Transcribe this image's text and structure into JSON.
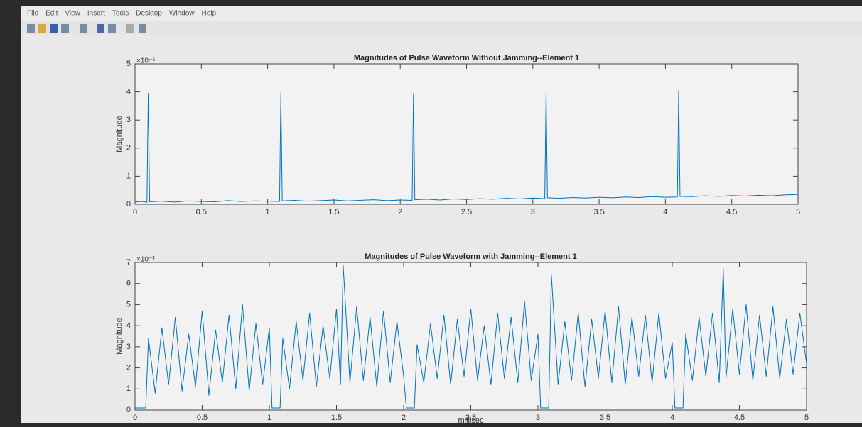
{
  "menu": [
    "File",
    "Edit",
    "View",
    "Insert",
    "Tools",
    "Desktop",
    "Window",
    "Help"
  ],
  "chart_data": [
    {
      "type": "line",
      "title": "Magnitudes of Pulse Waveform Without Jamming--Element 1",
      "ylabel": "Magnitude",
      "y_exponent": "×10⁻⁶",
      "x": [
        0,
        0.05,
        0.09,
        0.1,
        0.11,
        0.2,
        0.3,
        0.4,
        0.5,
        0.6,
        0.7,
        0.8,
        0.9,
        1.0,
        1.09,
        1.1,
        1.11,
        1.2,
        1.3,
        1.4,
        1.5,
        1.6,
        1.7,
        1.8,
        1.9,
        2.0,
        2.09,
        2.1,
        2.11,
        2.2,
        2.3,
        2.4,
        2.5,
        2.6,
        2.7,
        2.8,
        2.9,
        3.0,
        3.09,
        3.1,
        3.11,
        3.2,
        3.3,
        3.4,
        3.5,
        3.6,
        3.7,
        3.8,
        3.9,
        4.0,
        4.09,
        4.1,
        4.11,
        4.2,
        4.3,
        4.4,
        4.5,
        4.6,
        4.7,
        4.8,
        4.9,
        5.0
      ],
      "series": [
        {
          "color": "#0072bd",
          "values": [
            0.08,
            0.1,
            0.07,
            3.95,
            0.09,
            0.11,
            0.08,
            0.12,
            0.1,
            0.09,
            0.13,
            0.1,
            0.12,
            0.11,
            0.1,
            3.97,
            0.12,
            0.14,
            0.11,
            0.13,
            0.15,
            0.12,
            0.14,
            0.16,
            0.13,
            0.15,
            0.14,
            3.95,
            0.16,
            0.18,
            0.15,
            0.19,
            0.17,
            0.2,
            0.18,
            0.21,
            0.19,
            0.22,
            0.2,
            4.02,
            0.23,
            0.21,
            0.24,
            0.22,
            0.25,
            0.23,
            0.26,
            0.24,
            0.27,
            0.25,
            0.26,
            4.05,
            0.28,
            0.27,
            0.3,
            0.28,
            0.31,
            0.29,
            0.32,
            0.3,
            0.33,
            0.35
          ]
        }
      ],
      "xlim": [
        0,
        5
      ],
      "xticks": [
        0,
        0.5,
        1,
        1.5,
        2,
        2.5,
        3,
        3.5,
        4,
        4.5,
        5
      ],
      "ylim": [
        0,
        5
      ],
      "yticks": [
        0,
        1,
        2,
        3,
        4,
        5
      ]
    },
    {
      "type": "line",
      "title": "Magnitudes of Pulse Waveform with Jamming--Element 1",
      "xlabel": "millisec",
      "ylabel": "Magnitude",
      "y_exponent": "×10⁻³",
      "x": [
        0,
        0.08,
        0.1,
        0.15,
        0.2,
        0.25,
        0.3,
        0.35,
        0.4,
        0.45,
        0.5,
        0.55,
        0.6,
        0.65,
        0.7,
        0.75,
        0.8,
        0.85,
        0.9,
        0.95,
        1.0,
        1.02,
        1.08,
        1.1,
        1.15,
        1.2,
        1.25,
        1.3,
        1.35,
        1.4,
        1.45,
        1.5,
        1.53,
        1.55,
        1.6,
        1.65,
        1.7,
        1.75,
        1.8,
        1.85,
        1.9,
        1.95,
        2.0,
        2.02,
        2.08,
        2.1,
        2.15,
        2.2,
        2.25,
        2.3,
        2.35,
        2.4,
        2.45,
        2.5,
        2.55,
        2.6,
        2.65,
        2.7,
        2.75,
        2.8,
        2.85,
        2.9,
        2.95,
        3.0,
        3.02,
        3.08,
        3.1,
        3.15,
        3.2,
        3.25,
        3.3,
        3.35,
        3.4,
        3.45,
        3.5,
        3.55,
        3.6,
        3.65,
        3.7,
        3.75,
        3.8,
        3.85,
        3.9,
        3.95,
        4.0,
        4.02,
        4.08,
        4.1,
        4.15,
        4.2,
        4.25,
        4.3,
        4.35,
        4.38,
        4.4,
        4.45,
        4.5,
        4.55,
        4.6,
        4.65,
        4.7,
        4.75,
        4.8,
        4.85,
        4.9,
        4.95,
        5.0
      ],
      "series": [
        {
          "color": "#0072bd",
          "values": [
            0.1,
            0.1,
            3.4,
            0.8,
            3.9,
            1.2,
            4.4,
            0.9,
            3.6,
            1.1,
            4.7,
            0.7,
            3.8,
            1.3,
            4.5,
            1.0,
            5.0,
            0.9,
            4.1,
            1.2,
            3.9,
            0.1,
            0.1,
            3.4,
            1.0,
            4.2,
            1.4,
            4.6,
            1.1,
            4.0,
            1.5,
            4.8,
            1.2,
            6.85,
            1.3,
            4.9,
            1.4,
            4.4,
            1.1,
            4.7,
            1.3,
            4.2,
            1.6,
            0.1,
            0.1,
            3.1,
            1.3,
            4.1,
            1.5,
            4.5,
            1.2,
            4.3,
            1.6,
            4.8,
            1.4,
            4.0,
            1.2,
            4.6,
            1.5,
            4.4,
            1.3,
            5.15,
            1.4,
            3.6,
            0.1,
            0.1,
            6.4,
            1.2,
            4.2,
            1.4,
            4.6,
            1.1,
            4.3,
            1.5,
            4.7,
            1.3,
            4.9,
            1.2,
            4.4,
            1.6,
            4.5,
            1.3,
            4.6,
            1.5,
            3.2,
            0.1,
            0.1,
            3.6,
            1.4,
            4.4,
            1.6,
            4.6,
            1.3,
            6.7,
            1.5,
            4.8,
            1.7,
            5.0,
            1.4,
            4.5,
            1.6,
            4.9,
            1.5,
            4.3,
            1.7,
            4.6,
            2.2
          ]
        }
      ],
      "xlim": [
        0,
        5
      ],
      "xticks": [
        0,
        0.5,
        1,
        1.5,
        2,
        2.5,
        3,
        3.5,
        4,
        4.5,
        5
      ],
      "ylim": [
        0,
        7
      ],
      "yticks": [
        0,
        1,
        2,
        3,
        4,
        5,
        6,
        7
      ]
    }
  ]
}
